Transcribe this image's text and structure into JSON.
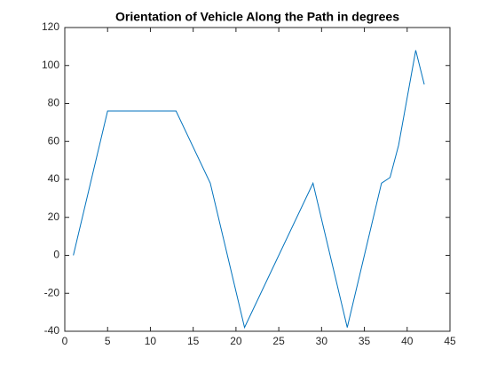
{
  "chart_data": {
    "type": "line",
    "title": "Orientation of Vehicle Along the Path in degrees",
    "x": [
      1,
      5,
      13,
      17,
      21,
      29,
      33,
      37,
      38,
      39,
      41,
      42
    ],
    "series": [
      {
        "color": "#0072bd",
        "values": [
          0,
          76,
          76,
          38,
          -38,
          38,
          -38,
          38,
          41,
          58,
          108,
          90
        ]
      }
    ],
    "xlim": [
      0,
      45
    ],
    "xticks": [
      0,
      5,
      10,
      15,
      20,
      25,
      30,
      35,
      40,
      45
    ],
    "ylim": [
      -40,
      120
    ],
    "yticks": [
      -40,
      -20,
      0,
      20,
      40,
      60,
      80,
      100,
      120
    ],
    "grid": false
  }
}
